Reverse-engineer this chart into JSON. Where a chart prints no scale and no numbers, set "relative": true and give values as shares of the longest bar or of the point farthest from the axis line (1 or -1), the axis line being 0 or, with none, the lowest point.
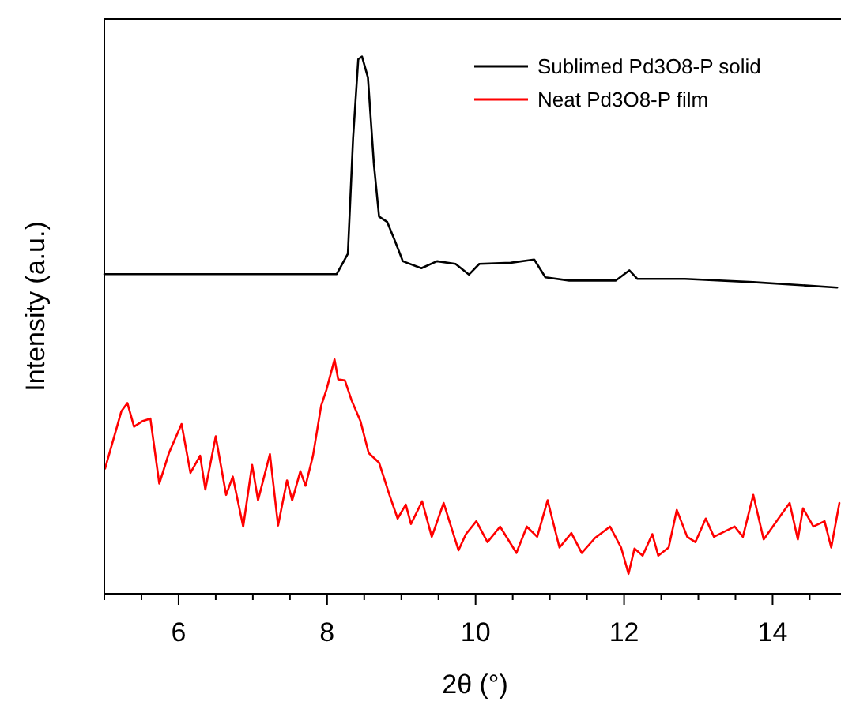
{
  "chart_data": {
    "type": "line",
    "xlabel": "2θ (°)",
    "ylabel": "Intensity (a.u.)",
    "relative": true,
    "legend": "top right",
    "marker": "none",
    "line_style": "solid",
    "xlim": [
      5,
      14.9
    ],
    "xticks": [
      {
        "value": 5,
        "label": null
      },
      {
        "value": 5.5,
        "label": null
      },
      6,
      {
        "value": 6.5,
        "label": null
      },
      {
        "value": 7,
        "label": null
      },
      {
        "value": 7.5,
        "label": null
      },
      8,
      {
        "value": 8.5,
        "label": null
      },
      {
        "value": 9,
        "label": null
      },
      {
        "value": 9.5,
        "label": null
      },
      10,
      {
        "value": 10.5,
        "label": null
      },
      {
        "value": 11,
        "label": null
      },
      {
        "value": 11.5,
        "label": null
      },
      12,
      {
        "value": 12.5,
        "label": null
      },
      {
        "value": 13,
        "label": null
      },
      {
        "value": 13.5,
        "label": null
      },
      14,
      {
        "value": 14.5,
        "label": null
      }
    ],
    "series": [
      {
        "name": "Sublimed Pd3O8-P solid",
        "color": "#000000",
        "x": [
          5.0,
          8.13,
          8.28,
          8.35,
          8.42,
          8.47,
          8.55,
          8.63,
          8.7,
          8.81,
          8.91,
          9.02,
          9.27,
          9.48,
          9.73,
          9.91,
          10.05,
          10.47,
          10.79,
          10.94,
          11.26,
          11.89,
          12.07,
          12.18,
          12.82,
          13.74,
          14.87
        ],
        "values": [
          0.595,
          0.595,
          0.633,
          0.848,
          0.995,
          1,
          0.961,
          0.8,
          0.702,
          0.692,
          0.658,
          0.619,
          0.606,
          0.619,
          0.614,
          0.594,
          0.614,
          0.616,
          0.622,
          0.589,
          0.583,
          0.583,
          0.602,
          0.586,
          0.586,
          0.58,
          0.57
        ]
      },
      {
        "name": "Neat Pd3O8-P film",
        "color": "#ff0000",
        "x": [
          5.01,
          5.16,
          5.23,
          5.31,
          5.4,
          5.51,
          5.62,
          5.74,
          5.87,
          6.04,
          6.16,
          6.29,
          6.36,
          6.5,
          6.64,
          6.73,
          6.87,
          6.99,
          7.07,
          7.23,
          7.34,
          7.46,
          7.53,
          7.64,
          7.71,
          7.81,
          7.92,
          7.99,
          8.1,
          8.15,
          8.24,
          8.33,
          8.45,
          8.56,
          8.7,
          8.84,
          8.95,
          9.06,
          9.13,
          9.28,
          9.41,
          9.57,
          9.77,
          9.87,
          10.01,
          10.16,
          10.33,
          10.55,
          10.69,
          10.83,
          10.97,
          11.13,
          11.29,
          11.43,
          11.61,
          11.81,
          11.96,
          12.06,
          12.14,
          12.25,
          12.38,
          12.46,
          12.6,
          12.71,
          12.85,
          12.96,
          13.1,
          13.21,
          13.49,
          13.6,
          13.74,
          13.88,
          14.13,
          14.23,
          14.34,
          14.41,
          14.55,
          14.7,
          14.79,
          14.9
        ],
        "values": [
          0.233,
          0.306,
          0.34,
          0.355,
          0.311,
          0.321,
          0.326,
          0.205,
          0.262,
          0.316,
          0.225,
          0.257,
          0.194,
          0.293,
          0.184,
          0.218,
          0.125,
          0.24,
          0.174,
          0.26,
          0.127,
          0.211,
          0.174,
          0.228,
          0.201,
          0.257,
          0.35,
          0.379,
          0.436,
          0.399,
          0.397,
          0.36,
          0.321,
          0.262,
          0.244,
          0.184,
          0.14,
          0.166,
          0.13,
          0.172,
          0.106,
          0.169,
          0.081,
          0.111,
          0.135,
          0.096,
          0.125,
          0.076,
          0.125,
          0.106,
          0.174,
          0.086,
          0.113,
          0.076,
          0.104,
          0.125,
          0.086,
          0.037,
          0.084,
          0.071,
          0.111,
          0.071,
          0.086,
          0.156,
          0.106,
          0.096,
          0.14,
          0.106,
          0.125,
          0.106,
          0.184,
          0.101,
          0.15,
          0.169,
          0.101,
          0.159,
          0.125,
          0.135,
          0.086,
          0.169
        ]
      }
    ]
  }
}
